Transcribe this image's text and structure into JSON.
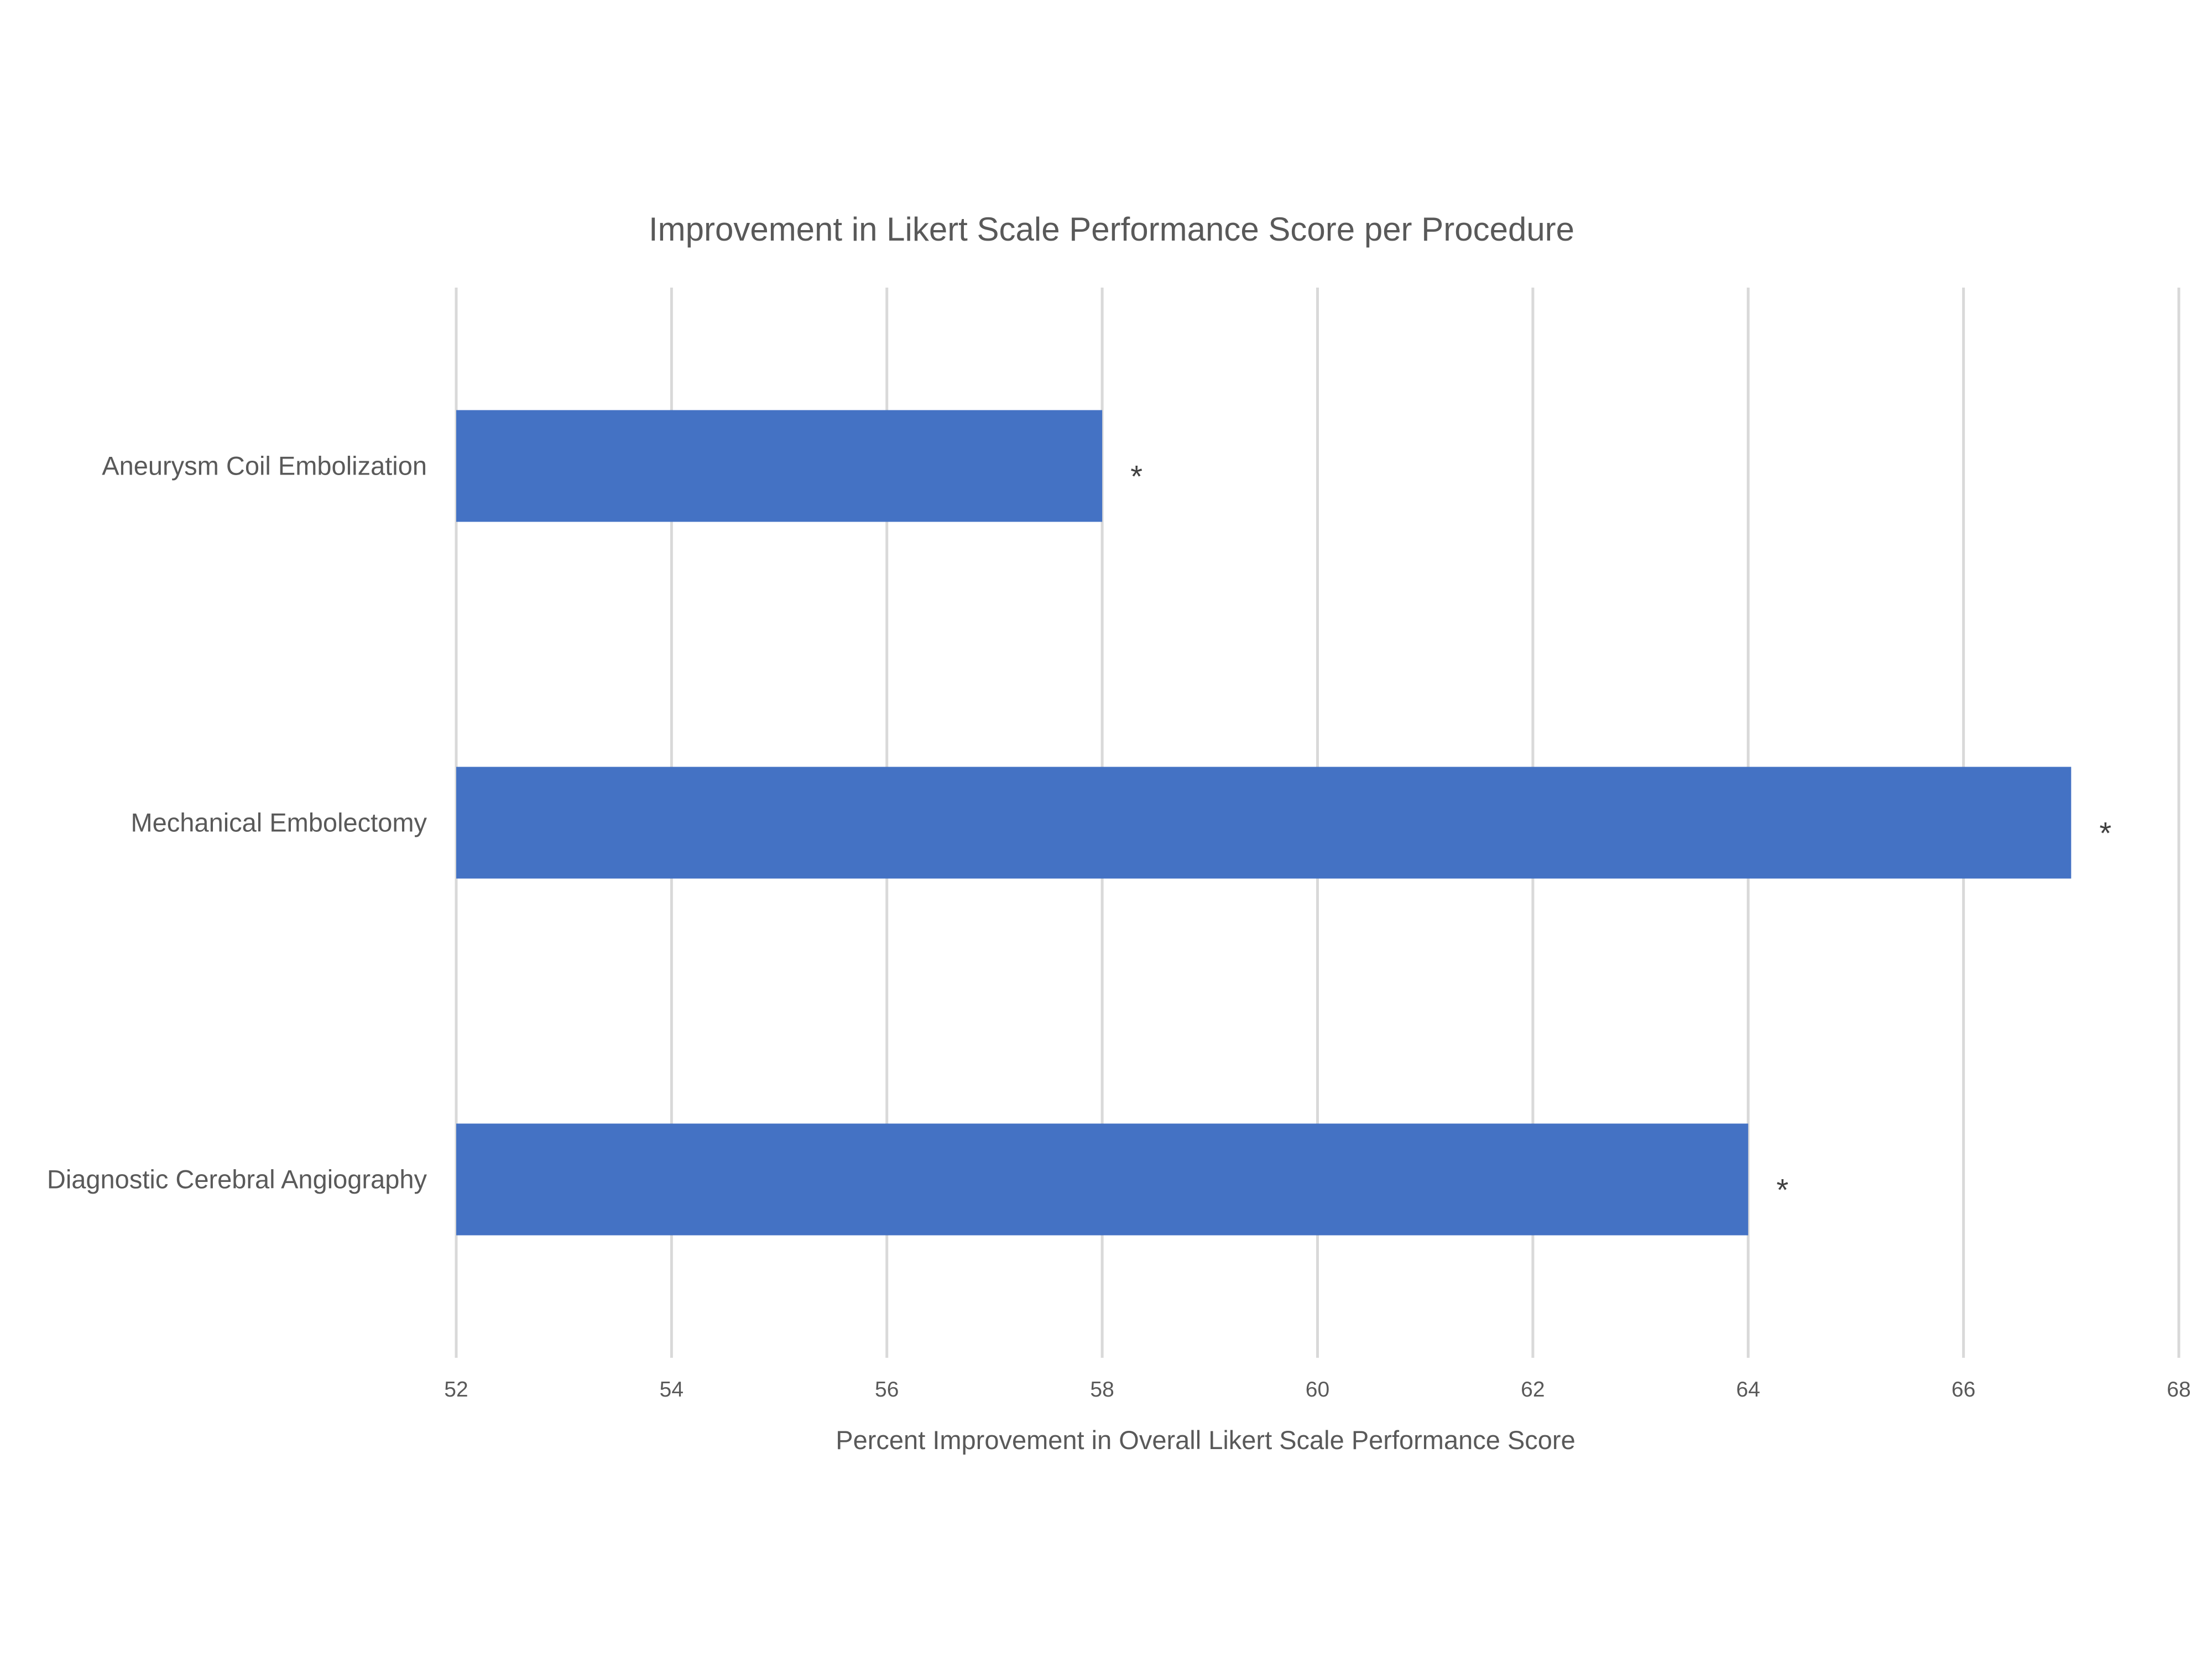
{
  "chart_data": {
    "type": "bar",
    "orientation": "horizontal",
    "title": "Improvement in Likert Scale Performance Score per Procedure",
    "xlabel": "Percent Improvement in Overall Likert Scale Performance Score",
    "ylabel": "",
    "categories": [
      "Aneurysm Coil Embolization",
      "Mechanical Embolectomy",
      "Diagnostic Cerebral Angiography"
    ],
    "values": [
      58,
      67,
      64
    ],
    "annotations": [
      "*",
      "*",
      "*"
    ],
    "xlim": [
      52,
      68
    ],
    "x_ticks": [
      "52",
      "54",
      "56",
      "58",
      "60",
      "62",
      "64",
      "66",
      "68"
    ],
    "grid": "vertical",
    "legend": "none",
    "bar_color": "#4472C4",
    "grid_color": "#D9D9D9"
  }
}
